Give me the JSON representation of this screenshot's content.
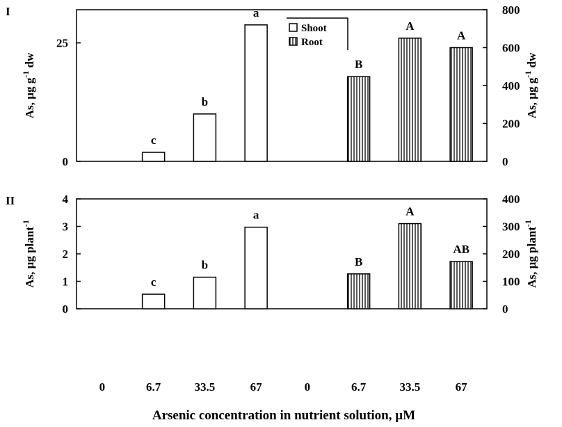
{
  "chart_data": [
    {
      "type": "bar",
      "panel_label": "I",
      "left_ylabel": "As, µg g",
      "left_ylabel_sup": "-1",
      "left_ylabel_tail": " dw",
      "right_ylabel": "As, µg g",
      "right_ylabel_sup": "-1",
      "right_ylabel_tail": " dw",
      "left_ylim": [
        0,
        32
      ],
      "left_ticks": [
        0,
        25
      ],
      "right_ylim": [
        0,
        800
      ],
      "right_ticks": [
        0,
        200,
        400,
        600,
        800
      ],
      "legend": {
        "position": "top-center",
        "entries": [
          "Shoot",
          "Root"
        ]
      },
      "series": [
        {
          "name": "Shoot",
          "axis": "left",
          "categories": [
            "0",
            "6.7",
            "33.5",
            "67"
          ],
          "values": [
            0,
            1.9,
            10.0,
            28.8
          ],
          "letters": [
            "",
            "c",
            "b",
            "a"
          ]
        },
        {
          "name": "Root",
          "axis": "right",
          "categories": [
            "0",
            "6.7",
            "33.5",
            "67"
          ],
          "values": [
            0,
            447,
            650,
            600
          ],
          "letters": [
            "",
            "B",
            "A",
            "A"
          ]
        }
      ]
    },
    {
      "type": "bar",
      "panel_label": "II",
      "left_ylabel": "As, µg plant",
      "left_ylabel_sup": "-1",
      "left_ylabel_tail": "",
      "right_ylabel": "As, µg plant",
      "right_ylabel_sup": "-1",
      "right_ylabel_tail": "",
      "left_ylim": [
        0,
        4
      ],
      "left_ticks": [
        0,
        1,
        2,
        3,
        4
      ],
      "right_ylim": [
        0,
        400
      ],
      "right_ticks": [
        0,
        100,
        200,
        300,
        400
      ],
      "series": [
        {
          "name": "Shoot",
          "axis": "left",
          "categories": [
            "0",
            "6.7",
            "33.5",
            "67"
          ],
          "values": [
            0,
            0.53,
            1.15,
            2.97
          ],
          "letters": [
            "",
            "c",
            "b",
            "a"
          ]
        },
        {
          "name": "Root",
          "axis": "right",
          "categories": [
            "0",
            "6.7",
            "33.5",
            "67"
          ],
          "values": [
            0,
            127,
            310,
            172
          ],
          "letters": [
            "",
            "B",
            "A",
            "AB"
          ]
        }
      ]
    }
  ],
  "x_tick_labels": [
    "0",
    "6.7",
    "33.5",
    "67",
    "0",
    "6.7",
    "33.5",
    "67"
  ],
  "xlabel": "Arsenic concentration in nutrient solution, µM"
}
